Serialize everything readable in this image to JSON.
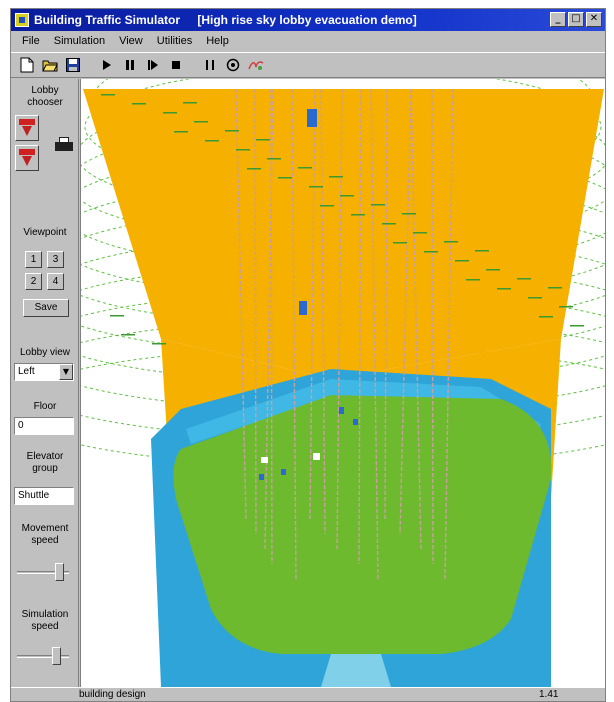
{
  "window": {
    "title": "Building Traffic Simulator",
    "document": "[High rise sky lobby evacuation demo]",
    "controls": [
      "_",
      "□",
      "✕"
    ]
  },
  "menu": [
    "File",
    "Simulation",
    "View",
    "Utilities",
    "Help"
  ],
  "toolbar": {
    "buttons": [
      "new-icon",
      "open-icon",
      "save-icon",
      "play-icon",
      "pause-icon",
      "step-icon",
      "stop-icon",
      "time-icon",
      "zoom-icon",
      "paint-icon"
    ]
  },
  "sidebar": {
    "lobby_chooser_label": "Lobby chooser",
    "viewpoint_label": "Viewpoint",
    "viewpoint_buttons": [
      "1",
      "3",
      "2",
      "4"
    ],
    "save_button": "Save",
    "lobby_view_label": "Lobby view",
    "lobby_view_value": "Left",
    "floor_label": "Floor",
    "floor_value": "0",
    "elevator_group_label": "Elevator group",
    "elevator_group_value": "Shuttle",
    "movement_speed_label": "Movement speed",
    "movement_speed_level": 0.9,
    "simulation_speed_label": "Simulation speed",
    "simulation_speed_level": 0.85
  },
  "viewport": {
    "colors": {
      "shaft": "#f5b000",
      "floor": "#6dba2e",
      "wall": "#2ea4d8",
      "wireframe": "#5ec040",
      "cables": "#c8a0a0"
    }
  },
  "status": {
    "left": "building design",
    "right": "1.41"
  }
}
